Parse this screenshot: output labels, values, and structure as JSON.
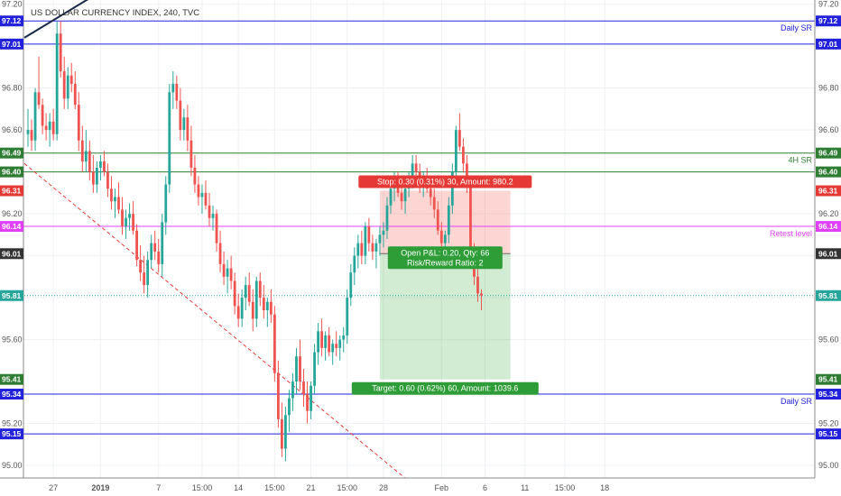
{
  "chart_data": {
    "type": "candlestick",
    "title": "US DOLLAR CURRENCY INDEX, 240, TVC",
    "ylim": [
      94.94,
      97.22
    ],
    "y_ticks": [
      95.0,
      95.2,
      95.6,
      95.8,
      96.0,
      96.2,
      96.4,
      96.6,
      96.8,
      97.2
    ],
    "x_ticks": [
      "27",
      "2019",
      "7",
      "15:00",
      "14",
      "15:00",
      "21",
      "15:00",
      "28",
      "Feb",
      "6",
      "11",
      "15:00",
      "18"
    ],
    "x_tick_bars": [
      7,
      20,
      36,
      48,
      58,
      68,
      78,
      88,
      98,
      114,
      126,
      137,
      148,
      159
    ],
    "bar_count": 164,
    "grid": true,
    "colors": {
      "up": "#26a69a",
      "down": "#ef5350",
      "frame": "#888888"
    },
    "levels": [
      {
        "price": 97.12,
        "label": "Daily SR",
        "badge": "97.12",
        "color": "#2222dd"
      },
      {
        "price": 97.01,
        "label": "",
        "badge": "97.01",
        "color": "#2222dd"
      },
      {
        "price": 96.49,
        "label": "4H SR",
        "badge": "96.49",
        "color": "#2e7d32"
      },
      {
        "price": 96.4,
        "label": "",
        "badge": "96.40",
        "color": "#2e7d32"
      },
      {
        "price": 96.14,
        "label": "Retest level",
        "badge": "96.14",
        "color": "#e040fb"
      },
      {
        "price": 95.34,
        "label": "Daily SR",
        "badge": "95.34",
        "color": "#2222dd"
      },
      {
        "price": 95.15,
        "label": "",
        "badge": "95.15",
        "color": "#2222dd"
      }
    ],
    "side_badges": [
      {
        "price": 96.31,
        "badge": "96.31",
        "color": "#e53935"
      },
      {
        "price": 96.01,
        "badge": "96.01",
        "color": "#333333"
      },
      {
        "price": 95.81,
        "badge": "95.81",
        "color": "#26a69a",
        "dotted": true
      },
      {
        "price": 95.41,
        "badge": "95.41",
        "color": "#2e7d32"
      }
    ],
    "position": {
      "entry": 96.01,
      "stop": 96.31,
      "target": 95.41,
      "start_bar": 97,
      "end_bar": 133,
      "stop_label": "Stop: 0.30 (0.31%) 30, Amount: 980.2",
      "pnl_label": "Open P&L: 0.20, Qty: 66",
      "rr_label": "Risk/Reward Ratio: 2",
      "target_label": "Target: 0.60 (0.62%) 60, Amount: 1039.6"
    },
    "trendlines": [
      {
        "style": "solid",
        "color": "#1a2a4a",
        "from": {
          "bar": -1,
          "price": 97.04
        },
        "to": {
          "bar": 20,
          "price": 97.26
        }
      },
      {
        "style": "dashed",
        "color": "#e53935",
        "from": {
          "bar": -1,
          "price": 96.44
        },
        "to": {
          "bar": 106,
          "price": 94.91
        }
      }
    ],
    "candles": [
      [
        96.58,
        96.7,
        96.52,
        96.6
      ],
      [
        96.6,
        96.65,
        96.5,
        96.55
      ],
      [
        96.55,
        96.8,
        96.5,
        96.78
      ],
      [
        96.78,
        96.95,
        96.7,
        96.72
      ],
      [
        96.72,
        96.75,
        96.58,
        96.62
      ],
      [
        96.62,
        96.68,
        96.55,
        96.6
      ],
      [
        96.6,
        96.68,
        96.52,
        96.64
      ],
      [
        96.64,
        96.7,
        96.55,
        96.58
      ],
      [
        96.58,
        97.12,
        96.55,
        97.06
      ],
      [
        97.06,
        97.12,
        96.85,
        96.88
      ],
      [
        96.88,
        96.95,
        96.7,
        96.75
      ],
      [
        96.75,
        96.9,
        96.7,
        96.86
      ],
      [
        96.86,
        96.92,
        96.78,
        96.82
      ],
      [
        96.82,
        96.88,
        96.7,
        96.72
      ],
      [
        96.72,
        96.78,
        96.5,
        96.55
      ],
      [
        96.55,
        96.62,
        96.4,
        96.45
      ],
      [
        96.45,
        96.6,
        96.4,
        96.5
      ],
      [
        96.5,
        96.55,
        96.36,
        96.4
      ],
      [
        96.4,
        96.48,
        96.3,
        96.34
      ],
      [
        96.34,
        96.45,
        96.3,
        96.42
      ],
      [
        96.42,
        96.48,
        96.36,
        96.45
      ],
      [
        96.45,
        96.5,
        96.38,
        96.4
      ],
      [
        96.4,
        96.44,
        96.28,
        96.32
      ],
      [
        96.32,
        96.38,
        96.22,
        96.26
      ],
      [
        96.26,
        96.32,
        96.18,
        96.28
      ],
      [
        96.28,
        96.35,
        96.2,
        96.22
      ],
      [
        96.22,
        96.28,
        96.1,
        96.14
      ],
      [
        96.14,
        96.22,
        96.08,
        96.18
      ],
      [
        96.18,
        96.25,
        96.12,
        96.2
      ],
      [
        96.2,
        96.26,
        96.1,
        96.12
      ],
      [
        96.12,
        96.15,
        95.95,
        95.98
      ],
      [
        95.98,
        96.05,
        95.88,
        95.92
      ],
      [
        95.92,
        96.0,
        95.82,
        95.86
      ],
      [
        95.86,
        96.02,
        95.8,
        95.98
      ],
      [
        95.98,
        96.1,
        95.94,
        96.06
      ],
      [
        96.06,
        96.12,
        95.98,
        96.02
      ],
      [
        96.02,
        96.08,
        95.92,
        95.96
      ],
      [
        95.96,
        96.2,
        95.9,
        96.16
      ],
      [
        96.16,
        96.38,
        96.1,
        96.34
      ],
      [
        96.34,
        96.82,
        96.3,
        96.78
      ],
      [
        96.78,
        96.88,
        96.7,
        96.82
      ],
      [
        96.82,
        96.86,
        96.7,
        96.74
      ],
      [
        96.74,
        96.8,
        96.55,
        96.6
      ],
      [
        96.6,
        96.7,
        96.55,
        96.66
      ],
      [
        96.66,
        96.72,
        96.5,
        96.55
      ],
      [
        96.55,
        96.62,
        96.38,
        96.42
      ],
      [
        96.42,
        96.48,
        96.3,
        96.34
      ],
      [
        96.34,
        96.38,
        96.24,
        96.28
      ],
      [
        96.28,
        96.34,
        96.2,
        96.3
      ],
      [
        96.3,
        96.36,
        96.22,
        96.24
      ],
      [
        96.24,
        96.3,
        96.14,
        96.18
      ],
      [
        96.18,
        96.24,
        96.12,
        96.2
      ],
      [
        96.2,
        96.22,
        96.02,
        96.06
      ],
      [
        96.06,
        96.12,
        95.92,
        95.96
      ],
      [
        95.96,
        96.02,
        95.86,
        95.9
      ],
      [
        95.9,
        95.98,
        95.82,
        95.94
      ],
      [
        95.94,
        96.0,
        95.84,
        95.88
      ],
      [
        95.88,
        95.92,
        95.72,
        95.76
      ],
      [
        95.76,
        95.82,
        95.66,
        95.7
      ],
      [
        95.7,
        95.84,
        95.66,
        95.8
      ],
      [
        95.8,
        95.9,
        95.74,
        95.86
      ],
      [
        95.86,
        95.92,
        95.76,
        95.78
      ],
      [
        95.78,
        95.84,
        95.64,
        95.7
      ],
      [
        95.7,
        95.9,
        95.66,
        95.88
      ],
      [
        95.88,
        95.92,
        95.76,
        95.8
      ],
      [
        95.8,
        95.86,
        95.7,
        95.74
      ],
      [
        95.74,
        95.8,
        95.66,
        95.78
      ],
      [
        95.78,
        95.84,
        95.68,
        95.72
      ],
      [
        95.72,
        95.76,
        95.4,
        95.44
      ],
      [
        95.44,
        95.5,
        95.18,
        95.22
      ],
      [
        95.22,
        95.3,
        95.04,
        95.08
      ],
      [
        95.08,
        95.28,
        95.02,
        95.24
      ],
      [
        95.24,
        95.36,
        95.16,
        95.32
      ],
      [
        95.32,
        95.44,
        95.26,
        95.4
      ],
      [
        95.4,
        95.56,
        95.34,
        95.52
      ],
      [
        95.52,
        95.6,
        95.36,
        95.4
      ],
      [
        95.4,
        95.46,
        95.28,
        95.34
      ],
      [
        95.34,
        95.4,
        95.2,
        95.26
      ],
      [
        95.26,
        95.4,
        95.22,
        95.38
      ],
      [
        95.38,
        95.58,
        95.34,
        95.54
      ],
      [
        95.54,
        95.68,
        95.48,
        95.64
      ],
      [
        95.64,
        95.7,
        95.52,
        95.56
      ],
      [
        95.56,
        95.64,
        95.5,
        95.62
      ],
      [
        95.62,
        95.66,
        95.52,
        95.54
      ],
      [
        95.54,
        95.6,
        95.48,
        95.58
      ],
      [
        95.58,
        95.64,
        95.52,
        95.56
      ],
      [
        95.56,
        95.62,
        95.5,
        95.6
      ],
      [
        95.6,
        95.66,
        95.54,
        95.62
      ],
      [
        95.62,
        95.84,
        95.58,
        95.8
      ],
      [
        95.8,
        95.96,
        95.76,
        95.92
      ],
      [
        95.92,
        96.04,
        95.86,
        96.0
      ],
      [
        96.0,
        96.1,
        95.94,
        96.06
      ],
      [
        96.06,
        96.12,
        95.96,
        96.0
      ],
      [
        96.0,
        96.16,
        95.96,
        96.14
      ],
      [
        96.14,
        96.18,
        96.02,
        96.06
      ],
      [
        96.06,
        96.1,
        95.98,
        96.02
      ],
      [
        96.02,
        96.08,
        95.94,
        96.06
      ],
      [
        96.06,
        96.14,
        96.0,
        96.1
      ],
      [
        96.1,
        96.16,
        96.04,
        96.12
      ],
      [
        96.12,
        96.28,
        96.08,
        96.24
      ],
      [
        96.24,
        96.36,
        96.2,
        96.32
      ],
      [
        96.32,
        96.4,
        96.26,
        96.36
      ],
      [
        96.36,
        96.4,
        96.28,
        96.3
      ],
      [
        96.3,
        96.34,
        96.22,
        96.26
      ],
      [
        96.26,
        96.34,
        96.2,
        96.32
      ],
      [
        96.32,
        96.4,
        96.28,
        96.38
      ],
      [
        96.38,
        96.48,
        96.32,
        96.44
      ],
      [
        96.44,
        96.48,
        96.36,
        96.4
      ],
      [
        96.4,
        96.44,
        96.3,
        96.34
      ],
      [
        96.34,
        96.4,
        96.28,
        96.36
      ],
      [
        96.36,
        96.42,
        96.3,
        96.32
      ],
      [
        96.32,
        96.36,
        96.24,
        96.28
      ],
      [
        96.28,
        96.32,
        96.18,
        96.22
      ],
      [
        96.22,
        96.26,
        96.1,
        96.12
      ],
      [
        96.12,
        96.16,
        96.04,
        96.06
      ],
      [
        96.06,
        96.12,
        96.0,
        96.1
      ],
      [
        96.1,
        96.28,
        96.06,
        96.24
      ],
      [
        96.24,
        96.44,
        96.2,
        96.4
      ],
      [
        96.4,
        96.62,
        96.36,
        96.6
      ],
      [
        96.6,
        96.68,
        96.5,
        96.52
      ],
      [
        96.52,
        96.56,
        96.4,
        96.44
      ],
      [
        96.44,
        96.48,
        96.3,
        96.34
      ],
      [
        96.34,
        96.38,
        96.0,
        96.02
      ],
      [
        96.02,
        96.06,
        95.86,
        95.9
      ],
      [
        95.9,
        95.94,
        95.78,
        95.82
      ],
      [
        95.82,
        95.84,
        95.74,
        95.81
      ]
    ]
  }
}
